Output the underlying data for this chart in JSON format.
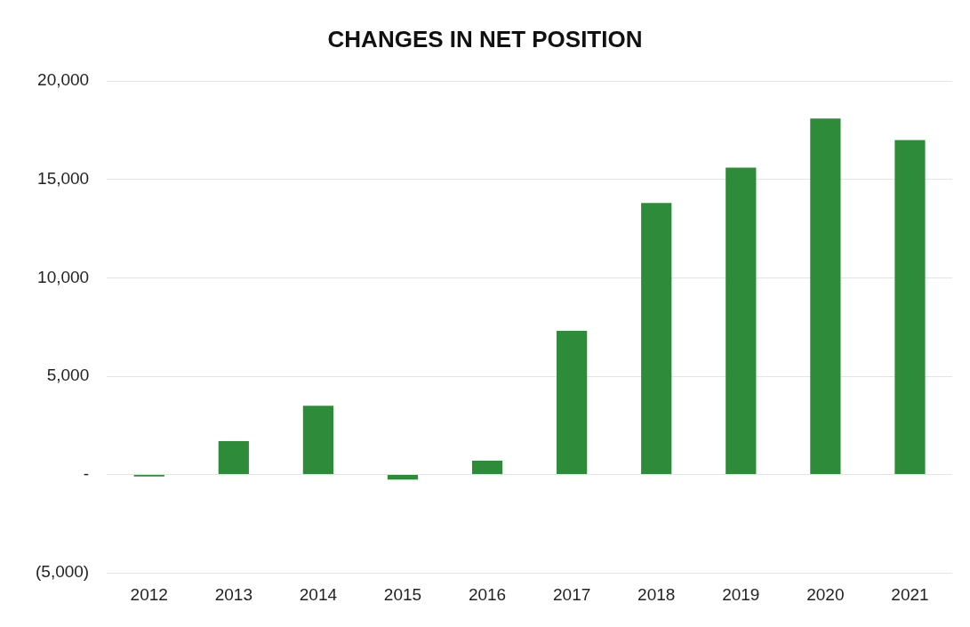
{
  "chart_data": {
    "type": "bar",
    "title": "CHANGES IN NET POSITION",
    "categories": [
      "2012",
      "2013",
      "2014",
      "2015",
      "2016",
      "2017",
      "2018",
      "2019",
      "2020",
      "2021"
    ],
    "values": [
      -100,
      1700,
      3500,
      -250,
      700,
      7300,
      13800,
      15600,
      18100,
      17000
    ],
    "color": "#2e8b3a",
    "ylim": [
      -5000,
      20000
    ],
    "yticks": [
      {
        "value": -5000,
        "label": "(5,000)"
      },
      {
        "value": 0,
        "label": "-"
      },
      {
        "value": 5000,
        "label": "5,000"
      },
      {
        "value": 10000,
        "label": "10,000"
      },
      {
        "value": 15000,
        "label": "15,000"
      },
      {
        "value": 20000,
        "label": "20,000"
      }
    ],
    "grid": "y"
  }
}
